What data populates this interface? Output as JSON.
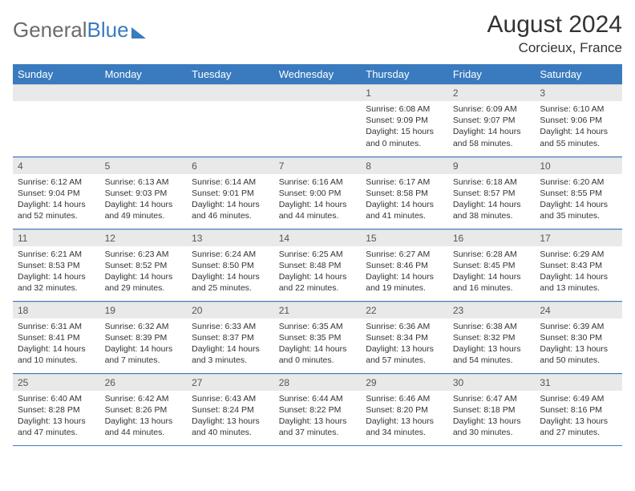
{
  "logo": {
    "part1": "General",
    "part2": "Blue"
  },
  "title": "August 2024",
  "subtitle": "Corcieux, France",
  "colors": {
    "accent": "#3a7bbf",
    "daybar": "#e9e9e9",
    "text": "#333333",
    "logo_gray": "#6b6b6b"
  },
  "day_headers": [
    "Sunday",
    "Monday",
    "Tuesday",
    "Wednesday",
    "Thursday",
    "Friday",
    "Saturday"
  ],
  "weeks": [
    [
      null,
      null,
      null,
      null,
      {
        "n": "1",
        "sunrise": "Sunrise: 6:08 AM",
        "sunset": "Sunset: 9:09 PM",
        "daylight": "Daylight: 15 hours and 0 minutes."
      },
      {
        "n": "2",
        "sunrise": "Sunrise: 6:09 AM",
        "sunset": "Sunset: 9:07 PM",
        "daylight": "Daylight: 14 hours and 58 minutes."
      },
      {
        "n": "3",
        "sunrise": "Sunrise: 6:10 AM",
        "sunset": "Sunset: 9:06 PM",
        "daylight": "Daylight: 14 hours and 55 minutes."
      }
    ],
    [
      {
        "n": "4",
        "sunrise": "Sunrise: 6:12 AM",
        "sunset": "Sunset: 9:04 PM",
        "daylight": "Daylight: 14 hours and 52 minutes."
      },
      {
        "n": "5",
        "sunrise": "Sunrise: 6:13 AM",
        "sunset": "Sunset: 9:03 PM",
        "daylight": "Daylight: 14 hours and 49 minutes."
      },
      {
        "n": "6",
        "sunrise": "Sunrise: 6:14 AM",
        "sunset": "Sunset: 9:01 PM",
        "daylight": "Daylight: 14 hours and 46 minutes."
      },
      {
        "n": "7",
        "sunrise": "Sunrise: 6:16 AM",
        "sunset": "Sunset: 9:00 PM",
        "daylight": "Daylight: 14 hours and 44 minutes."
      },
      {
        "n": "8",
        "sunrise": "Sunrise: 6:17 AM",
        "sunset": "Sunset: 8:58 PM",
        "daylight": "Daylight: 14 hours and 41 minutes."
      },
      {
        "n": "9",
        "sunrise": "Sunrise: 6:18 AM",
        "sunset": "Sunset: 8:57 PM",
        "daylight": "Daylight: 14 hours and 38 minutes."
      },
      {
        "n": "10",
        "sunrise": "Sunrise: 6:20 AM",
        "sunset": "Sunset: 8:55 PM",
        "daylight": "Daylight: 14 hours and 35 minutes."
      }
    ],
    [
      {
        "n": "11",
        "sunrise": "Sunrise: 6:21 AM",
        "sunset": "Sunset: 8:53 PM",
        "daylight": "Daylight: 14 hours and 32 minutes."
      },
      {
        "n": "12",
        "sunrise": "Sunrise: 6:23 AM",
        "sunset": "Sunset: 8:52 PM",
        "daylight": "Daylight: 14 hours and 29 minutes."
      },
      {
        "n": "13",
        "sunrise": "Sunrise: 6:24 AM",
        "sunset": "Sunset: 8:50 PM",
        "daylight": "Daylight: 14 hours and 25 minutes."
      },
      {
        "n": "14",
        "sunrise": "Sunrise: 6:25 AM",
        "sunset": "Sunset: 8:48 PM",
        "daylight": "Daylight: 14 hours and 22 minutes."
      },
      {
        "n": "15",
        "sunrise": "Sunrise: 6:27 AM",
        "sunset": "Sunset: 8:46 PM",
        "daylight": "Daylight: 14 hours and 19 minutes."
      },
      {
        "n": "16",
        "sunrise": "Sunrise: 6:28 AM",
        "sunset": "Sunset: 8:45 PM",
        "daylight": "Daylight: 14 hours and 16 minutes."
      },
      {
        "n": "17",
        "sunrise": "Sunrise: 6:29 AM",
        "sunset": "Sunset: 8:43 PM",
        "daylight": "Daylight: 14 hours and 13 minutes."
      }
    ],
    [
      {
        "n": "18",
        "sunrise": "Sunrise: 6:31 AM",
        "sunset": "Sunset: 8:41 PM",
        "daylight": "Daylight: 14 hours and 10 minutes."
      },
      {
        "n": "19",
        "sunrise": "Sunrise: 6:32 AM",
        "sunset": "Sunset: 8:39 PM",
        "daylight": "Daylight: 14 hours and 7 minutes."
      },
      {
        "n": "20",
        "sunrise": "Sunrise: 6:33 AM",
        "sunset": "Sunset: 8:37 PM",
        "daylight": "Daylight: 14 hours and 3 minutes."
      },
      {
        "n": "21",
        "sunrise": "Sunrise: 6:35 AM",
        "sunset": "Sunset: 8:35 PM",
        "daylight": "Daylight: 14 hours and 0 minutes."
      },
      {
        "n": "22",
        "sunrise": "Sunrise: 6:36 AM",
        "sunset": "Sunset: 8:34 PM",
        "daylight": "Daylight: 13 hours and 57 minutes."
      },
      {
        "n": "23",
        "sunrise": "Sunrise: 6:38 AM",
        "sunset": "Sunset: 8:32 PM",
        "daylight": "Daylight: 13 hours and 54 minutes."
      },
      {
        "n": "24",
        "sunrise": "Sunrise: 6:39 AM",
        "sunset": "Sunset: 8:30 PM",
        "daylight": "Daylight: 13 hours and 50 minutes."
      }
    ],
    [
      {
        "n": "25",
        "sunrise": "Sunrise: 6:40 AM",
        "sunset": "Sunset: 8:28 PM",
        "daylight": "Daylight: 13 hours and 47 minutes."
      },
      {
        "n": "26",
        "sunrise": "Sunrise: 6:42 AM",
        "sunset": "Sunset: 8:26 PM",
        "daylight": "Daylight: 13 hours and 44 minutes."
      },
      {
        "n": "27",
        "sunrise": "Sunrise: 6:43 AM",
        "sunset": "Sunset: 8:24 PM",
        "daylight": "Daylight: 13 hours and 40 minutes."
      },
      {
        "n": "28",
        "sunrise": "Sunrise: 6:44 AM",
        "sunset": "Sunset: 8:22 PM",
        "daylight": "Daylight: 13 hours and 37 minutes."
      },
      {
        "n": "29",
        "sunrise": "Sunrise: 6:46 AM",
        "sunset": "Sunset: 8:20 PM",
        "daylight": "Daylight: 13 hours and 34 minutes."
      },
      {
        "n": "30",
        "sunrise": "Sunrise: 6:47 AM",
        "sunset": "Sunset: 8:18 PM",
        "daylight": "Daylight: 13 hours and 30 minutes."
      },
      {
        "n": "31",
        "sunrise": "Sunrise: 6:49 AM",
        "sunset": "Sunset: 8:16 PM",
        "daylight": "Daylight: 13 hours and 27 minutes."
      }
    ]
  ]
}
